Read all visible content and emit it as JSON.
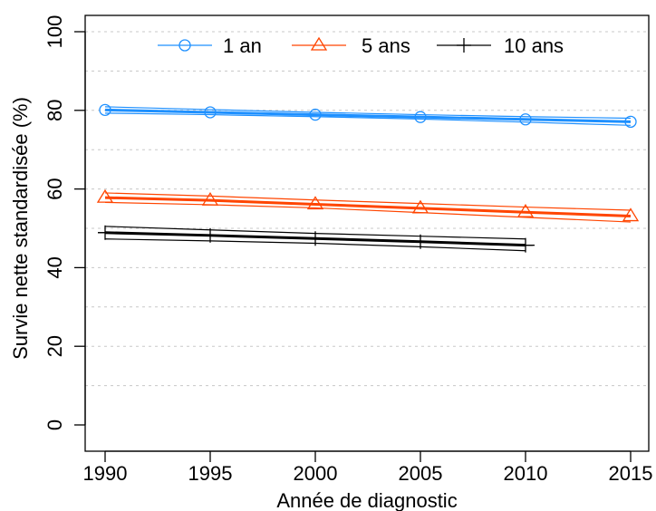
{
  "chart_data": {
    "type": "line",
    "xlabel": "Année de diagnostic",
    "ylabel": "Survie nette standardisée (%)",
    "xlim": [
      1990,
      2015
    ],
    "ylim": [
      0,
      100
    ],
    "x_ticks": [
      "1990",
      "1995",
      "2000",
      "2005",
      "2010",
      "2015"
    ],
    "y_ticks": [
      "0",
      "20",
      "40",
      "60",
      "80",
      "100"
    ],
    "grid": "horizontal dotted",
    "legend_position": "top-center",
    "series": [
      {
        "name": "1 an",
        "color": "#1e90ff",
        "marker": "circle",
        "x": [
          1990,
          1995,
          2000,
          2005,
          2010,
          2015
        ],
        "values": [
          80.1,
          79.5,
          78.9,
          78.3,
          77.7,
          77.1
        ],
        "ci_lower": [
          79.3,
          78.9,
          78.4,
          77.8,
          77.0,
          76.2
        ],
        "ci_upper": [
          80.9,
          80.2,
          79.5,
          78.9,
          78.4,
          78.0
        ]
      },
      {
        "name": "5 ans",
        "color": "#ff4500",
        "marker": "triangle",
        "x": [
          1990,
          1995,
          2000,
          2005,
          2010,
          2015
        ],
        "values": [
          57.8,
          57.1,
          56.1,
          55.1,
          54.1,
          53.1
        ],
        "ci_lower": [
          56.6,
          56.0,
          55.2,
          54.0,
          52.8,
          51.6
        ],
        "ci_upper": [
          59.0,
          58.2,
          57.2,
          56.3,
          55.4,
          54.6
        ]
      },
      {
        "name": "10 ans",
        "color": "#000000",
        "marker": "plus",
        "x": [
          1990,
          1995,
          2000,
          2005,
          2010
        ],
        "values": [
          48.9,
          48.2,
          47.4,
          46.6,
          45.7
        ],
        "ci_lower": [
          47.3,
          46.8,
          46.2,
          45.3,
          44.3
        ],
        "ci_upper": [
          50.5,
          49.6,
          48.7,
          48.0,
          47.3
        ]
      }
    ]
  }
}
